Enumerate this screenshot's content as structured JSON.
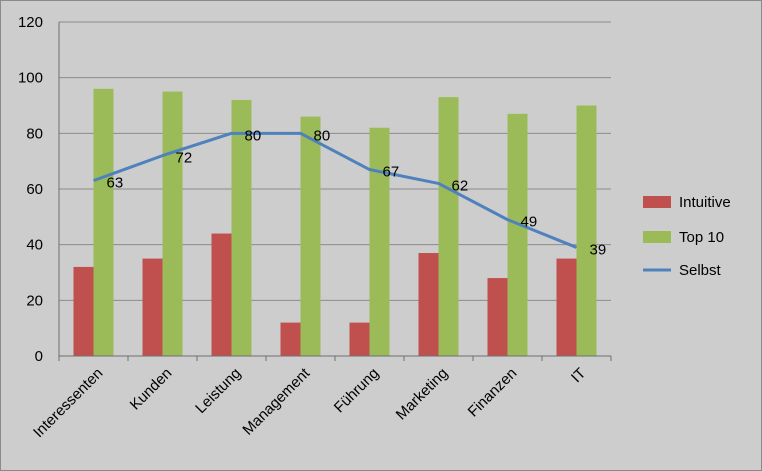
{
  "chart_data": {
    "type": "bar",
    "categories": [
      "Interessenten",
      "Kunden",
      "Leistung",
      "Management",
      "Führung",
      "Marketing",
      "Finanzen",
      "IT"
    ],
    "series": [
      {
        "name": "Intuitive",
        "type": "bar",
        "values": [
          32,
          35,
          44,
          12,
          12,
          37,
          28,
          35
        ],
        "color": "#c0504d"
      },
      {
        "name": "Top 10",
        "type": "bar",
        "values": [
          96,
          95,
          92,
          86,
          82,
          93,
          87,
          90
        ],
        "color": "#9bbb59"
      },
      {
        "name": "Selbst",
        "type": "line",
        "values": [
          63,
          72,
          80,
          80,
          67,
          62,
          49,
          39
        ],
        "color": "#4f81bd",
        "data_labels": [
          "63",
          "72",
          "80",
          "80",
          "67",
          "62",
          "49",
          "39"
        ]
      }
    ],
    "ylim": [
      0,
      120
    ],
    "yticks": [
      0,
      20,
      40,
      60,
      80,
      100,
      120
    ],
    "ytick_labels": [
      "0",
      "20",
      "40",
      "60",
      "80",
      "100",
      "120"
    ],
    "grid": true,
    "legend_position": "right",
    "background": "#cdcdcd",
    "gridline_color": "#8c8c8c"
  }
}
